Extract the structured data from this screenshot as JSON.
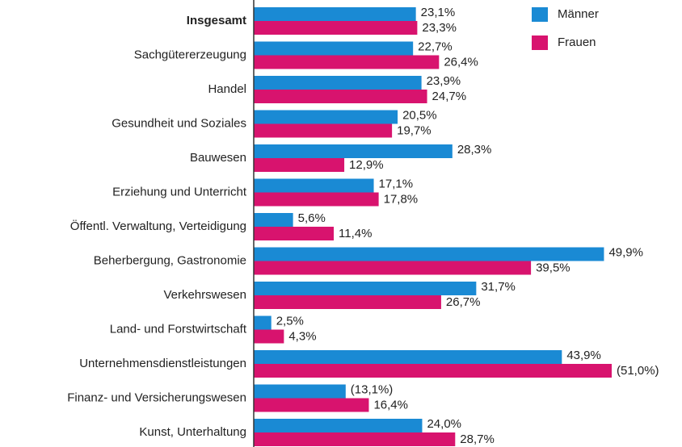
{
  "chart_data": {
    "type": "bar",
    "orientation": "horizontal",
    "categories": [
      "Insgesamt",
      "Sachgütererzeugung",
      "Handel",
      "Gesundheit und Soziales",
      "Bauwesen",
      "Erziehung und Unterricht",
      "Öffentl. Verwaltung, Verteidigung",
      "Beherbergung, Gastronomie",
      "Verkehrswesen",
      "Land- und Forstwirtschaft",
      "Unternehmensdienstleistungen",
      "Finanz- und Versicherungswesen",
      "Kunst, Unterhaltung"
    ],
    "series": [
      {
        "name": "Männer",
        "color": "#1a8ad4",
        "values": [
          23.1,
          22.7,
          23.9,
          20.5,
          28.3,
          17.1,
          5.6,
          49.9,
          31.7,
          2.5,
          43.9,
          13.1,
          24.0
        ],
        "value_labels": [
          "23,1%",
          "22,7%",
          "23,9%",
          "20,5%",
          "28,3%",
          "17,1%",
          "5,6%",
          "49,9%",
          "31,7%",
          "2,5%",
          "43,9%",
          "(13,1%)",
          "24,0%"
        ]
      },
      {
        "name": "Frauen",
        "color": "#d8136e",
        "values": [
          23.3,
          26.4,
          24.7,
          19.7,
          12.9,
          17.8,
          11.4,
          39.5,
          26.7,
          4.3,
          51.0,
          16.4,
          28.7
        ],
        "value_labels": [
          "23,3%",
          "26,4%",
          "24,7%",
          "19,7%",
          "12,9%",
          "17,8%",
          "11,4%",
          "39,5%",
          "26,7%",
          "4,3%",
          "(51,0%)",
          "16,4%",
          "28,7%"
        ]
      }
    ],
    "legend": "top-right"
  }
}
